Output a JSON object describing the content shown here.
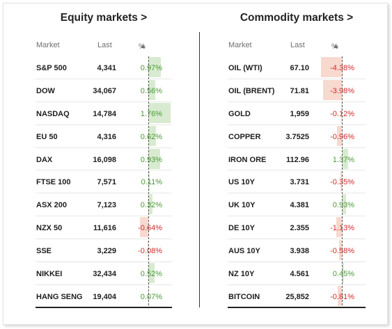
{
  "equity": {
    "title": "Equity markets >",
    "headers": {
      "market": "Market",
      "last": "Last",
      "pct": "%",
      "sort_arrow": "▲"
    },
    "max_abs_pct": 1.76,
    "rows": [
      {
        "name": "S&P 500",
        "last": "4,341",
        "pct_text": "0.97%",
        "pct": 0.97
      },
      {
        "name": "DOW",
        "last": "34,067",
        "pct_text": "0.56%",
        "pct": 0.56
      },
      {
        "name": "NASDAQ",
        "last": "14,784",
        "pct_text": "1.76%",
        "pct": 1.76
      },
      {
        "name": "EU 50",
        "last": "4,316",
        "pct_text": "0.62%",
        "pct": 0.62
      },
      {
        "name": "DAX",
        "last": "16,098",
        "pct_text": "0.93%",
        "pct": 0.93
      },
      {
        "name": "FTSE 100",
        "last": "7,571",
        "pct_text": "0.11%",
        "pct": 0.11
      },
      {
        "name": "ASX 200",
        "last": "7,123",
        "pct_text": "0.32%",
        "pct": 0.32
      },
      {
        "name": "NZX 50",
        "last": "11,616",
        "pct_text": "-0.64%",
        "pct": -0.64
      },
      {
        "name": "SSE",
        "last": "3,229",
        "pct_text": "-0.08%",
        "pct": -0.08
      },
      {
        "name": "NIKKEI",
        "last": "32,434",
        "pct_text": "0.52%",
        "pct": 0.52
      },
      {
        "name": "HANG SENG",
        "last": "19,404",
        "pct_text": "0.07%",
        "pct": 0.07
      }
    ]
  },
  "commodity": {
    "title": "Commodity markets >",
    "headers": {
      "market": "Market",
      "last": "Last",
      "pct": "%",
      "sort_arrow": "▲"
    },
    "max_abs_pct": 4.38,
    "rows": [
      {
        "name": "OIL (WTI)",
        "last": "67.10",
        "pct_text": "-4.38%",
        "pct": -4.38
      },
      {
        "name": "OIL (BRENT)",
        "last": "71.81",
        "pct_text": "-3.98%",
        "pct": -3.98
      },
      {
        "name": "GOLD",
        "last": "1,959",
        "pct_text": "-0.12%",
        "pct": -0.12
      },
      {
        "name": "COPPER",
        "last": "3.7525",
        "pct_text": "-0.96%",
        "pct": -0.96
      },
      {
        "name": "IRON ORE",
        "last": "112.96",
        "pct_text": "1.37%",
        "pct": 1.37
      },
      {
        "name": "US 10Y",
        "last": "3.731",
        "pct_text": "-0.35%",
        "pct": -0.35
      },
      {
        "name": "UK 10Y",
        "last": "4.381",
        "pct_text": "0.93%",
        "pct": 0.93
      },
      {
        "name": "DE 10Y",
        "last": "2.355",
        "pct_text": "-1.13%",
        "pct": -1.13
      },
      {
        "name": "AUS 10Y",
        "last": "3.938",
        "pct_text": "-0.58%",
        "pct": -0.58
      },
      {
        "name": "NZ 10Y",
        "last": "4.561",
        "pct_text": "0.45%",
        "pct": 0.45
      },
      {
        "name": "BITCOIN",
        "last": "25,852",
        "pct_text": "-0.81%",
        "pct": -0.81
      }
    ]
  },
  "colors": {
    "positive_text": "#4a9a35",
    "negative_text": "#d12a2a",
    "positive_bar": "#d8ebd0",
    "negative_bar": "#f8d9cf"
  }
}
